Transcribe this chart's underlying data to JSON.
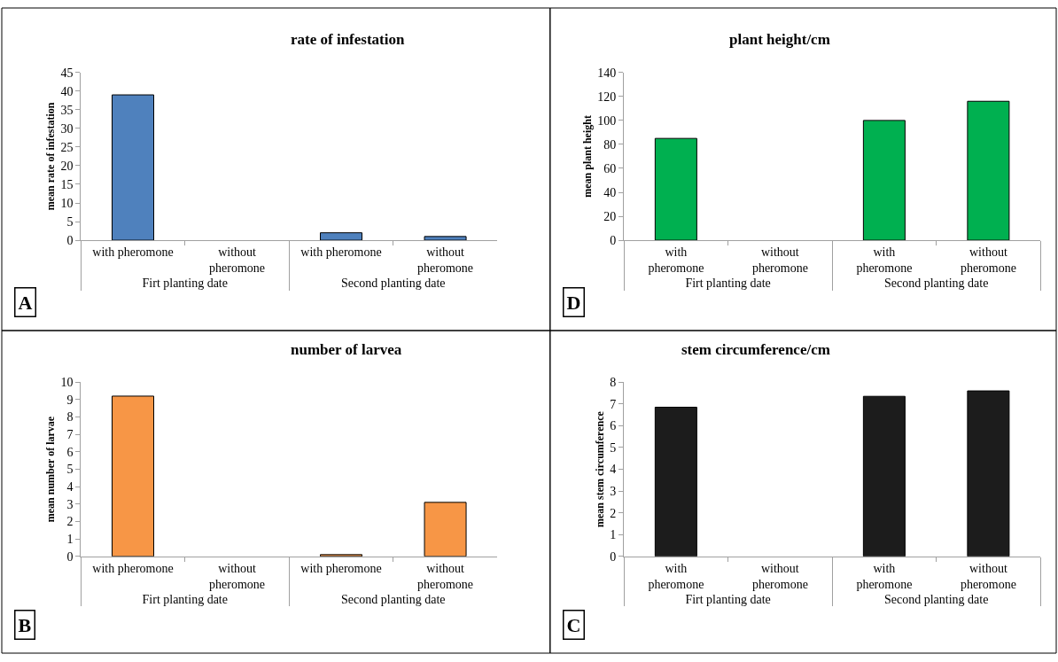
{
  "chart_data": [
    {
      "type": "bar",
      "title": "rate of infestation",
      "ylabel": "mean rate of infestation",
      "categories": [
        "with pheromone",
        "without pheromone",
        "with pheromone",
        "without pheromone"
      ],
      "values": [
        39,
        null,
        2,
        1
      ],
      "color": "#4f81bd",
      "ylim": [
        0,
        45
      ],
      "yticks": [
        0,
        5,
        10,
        15,
        20,
        25,
        30,
        35,
        40,
        45
      ],
      "annotations": [
        "Firt planting date",
        "Second planting date",
        "A"
      ]
    },
    {
      "type": "bar",
      "title": "plant height/cm",
      "ylabel": "mean plant height",
      "categories": [
        "with pheromone",
        "without pheromone",
        "with pheromone",
        "without pheromone"
      ],
      "values": [
        85,
        null,
        100,
        116
      ],
      "color": "#00b050",
      "ylim": [
        0,
        140
      ],
      "yticks": [
        0,
        20,
        40,
        60,
        80,
        100,
        120,
        140
      ],
      "annotations": [
        "Firt planting date",
        "Second planting date",
        "D"
      ]
    },
    {
      "type": "bar",
      "title": "number of larvea",
      "ylabel": "mean number of larvae",
      "categories": [
        "with pheromone",
        "without pheromone",
        "with pheromone",
        "without pheromone"
      ],
      "values": [
        9.2,
        null,
        0.1,
        3.1
      ],
      "color": "#f79646",
      "ylim": [
        0,
        10
      ],
      "yticks": [
        0,
        1,
        2,
        3,
        4,
        5,
        6,
        7,
        8,
        9,
        10
      ],
      "annotations": [
        "Firt planting date",
        "Second planting date",
        "B"
      ]
    },
    {
      "type": "bar",
      "title": "stem circumference/cm",
      "ylabel": "mean stem circumference",
      "categories": [
        "with pheromone",
        "without pheromone",
        "with pheromone",
        "without pheromone"
      ],
      "values": [
        6.85,
        null,
        7.35,
        7.6
      ],
      "color": "#1c1c1c",
      "ylim": [
        0,
        8
      ],
      "yticks": [
        0,
        1,
        2,
        3,
        4,
        5,
        6,
        7,
        8
      ],
      "annotations": [
        "Firt planting date",
        "Second planting date",
        "C"
      ]
    }
  ]
}
